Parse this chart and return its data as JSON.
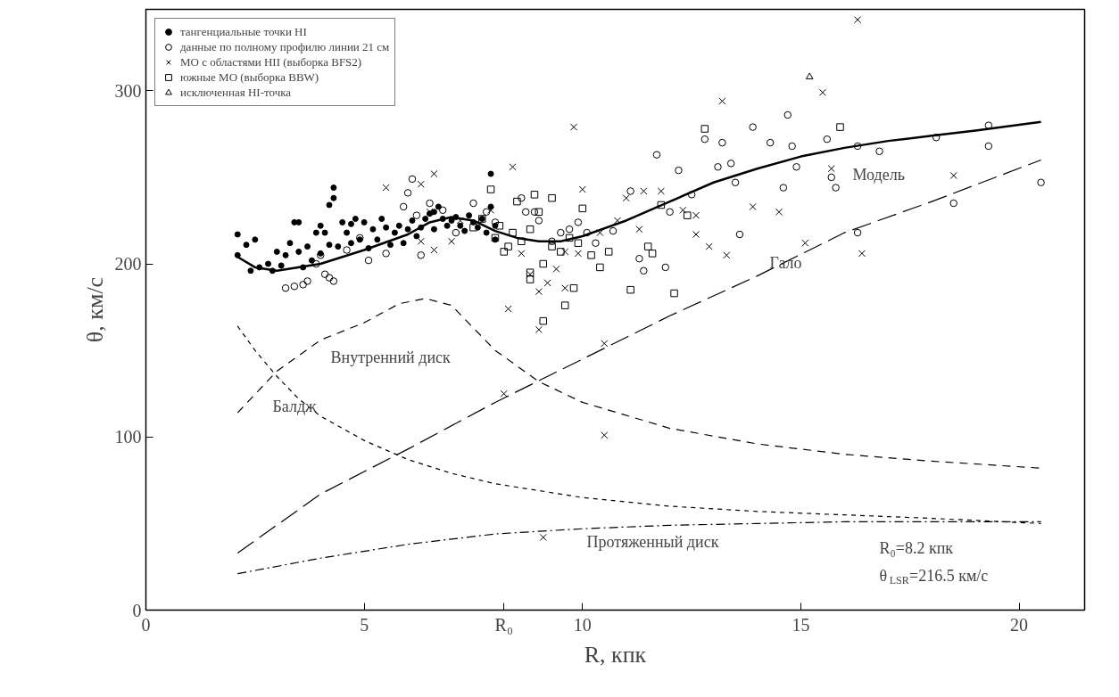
{
  "chart_data": {
    "type": "scatter",
    "xlabel": "R, кпк",
    "ylabel": "θ, км/с",
    "xlim": [
      0,
      21.5
    ],
    "ylim": [
      0,
      347
    ],
    "xticks": [
      0,
      5,
      {
        "value": 8.2,
        "label": "R₀"
      },
      10,
      15,
      20
    ],
    "yticks": [
      0,
      100,
      200,
      300
    ],
    "grid": false,
    "legend": "top left",
    "series": [
      {
        "name": "тангенциальные точки HI",
        "marker": "dot",
        "color": "#000000",
        "x": [
          2.1,
          2.1,
          2.3,
          2.4,
          2.5,
          2.6,
          2.8,
          2.9,
          3.0,
          3.1,
          3.2,
          3.3,
          3.4,
          3.5,
          3.5,
          3.6,
          3.7,
          3.8,
          3.9,
          4.0,
          4.0,
          4.1,
          4.2,
          4.2,
          4.3,
          4.3,
          4.4,
          4.5,
          4.6,
          4.7,
          4.7,
          4.8,
          4.9,
          5.0,
          5.1,
          5.2,
          5.3,
          5.4,
          5.5,
          5.6,
          5.7,
          5.8,
          5.9,
          6.0,
          6.1,
          6.2,
          6.3,
          6.4,
          6.5,
          6.6,
          6.6,
          6.7,
          6.8,
          6.9,
          7.0,
          7.1,
          7.2,
          7.3,
          7.4,
          7.5,
          7.6,
          7.7,
          7.8,
          7.9,
          7.9,
          8.0,
          8.0
        ],
        "values": [
          217,
          205,
          211,
          196,
          214,
          198,
          200,
          196,
          207,
          199,
          205,
          212,
          224,
          207,
          224,
          198,
          210,
          202,
          218,
          206,
          222,
          218,
          211,
          234,
          244,
          238,
          210,
          224,
          218,
          212,
          223,
          226,
          214,
          224,
          209,
          220,
          214,
          226,
          221,
          211,
          218,
          222,
          212,
          220,
          225,
          216,
          221,
          226,
          229,
          230,
          220,
          233,
          226,
          222,
          225,
          227,
          222,
          219,
          228,
          224,
          221,
          226,
          218,
          252,
          233,
          214,
          222
        ]
      },
      {
        "name": "данные по полному профилю линии 21 см",
        "marker": "circle",
        "color": "#000000",
        "x": [
          3.2,
          3.4,
          3.6,
          3.7,
          3.9,
          4.0,
          4.1,
          4.2,
          4.3,
          4.6,
          4.9,
          5.1,
          5.5,
          5.9,
          6.0,
          6.1,
          6.2,
          6.3,
          6.5,
          6.8,
          7.1,
          7.5,
          7.8,
          8.0,
          8.6,
          8.7,
          8.9,
          9.0,
          9.3,
          9.5,
          9.7,
          9.9,
          10.1,
          10.3,
          10.7,
          11.1,
          11.3,
          11.4,
          11.7,
          11.9,
          12.0,
          12.2,
          12.5,
          12.8,
          13.1,
          13.2,
          13.4,
          13.5,
          13.6,
          13.9,
          14.3,
          14.6,
          14.7,
          14.8,
          14.9,
          15.6,
          15.7,
          15.8,
          16.3,
          16.3,
          16.8,
          18.1,
          18.5,
          19.3,
          19.3,
          20.5
        ],
        "values": [
          186,
          187,
          188,
          190,
          200,
          205,
          194,
          192,
          190,
          208,
          215,
          202,
          206,
          233,
          241,
          249,
          228,
          205,
          235,
          231,
          218,
          235,
          230,
          224,
          238,
          230,
          230,
          225,
          213,
          218,
          220,
          224,
          218,
          212,
          219,
          242,
          203,
          196,
          263,
          198,
          230,
          254,
          240,
          272,
          256,
          270,
          258,
          247,
          217,
          279,
          270,
          244,
          286,
          268,
          256,
          272,
          250,
          244,
          268,
          218,
          265,
          273,
          235,
          280,
          268,
          247
        ]
      },
      {
        "name": "МО с областями HII (выборка BFS2)",
        "marker": "cross",
        "color": "#000000",
        "x": [
          5.5,
          6.3,
          6.5,
          6.6,
          7.0,
          6.3,
          6.6,
          7.9,
          8.4,
          8.6,
          8.8,
          9.0,
          9.2,
          9.4,
          9.6,
          9.8,
          10.0,
          10.4,
          10.5,
          10.5,
          8.2,
          9.1,
          8.3,
          9.0,
          9.9,
          11.0,
          11.4,
          11.8,
          12.3,
          12.6,
          12.9,
          13.2,
          13.3,
          13.9,
          14.5,
          15.1,
          15.5,
          15.7,
          16.3,
          16.4,
          18.5,
          10.8,
          11.3,
          12.6,
          9.6,
          7.2
        ],
        "values": [
          244,
          246,
          230,
          252,
          213,
          213,
          208,
          231,
          256,
          206,
          194,
          184,
          189,
          197,
          186,
          279,
          243,
          218,
          154,
          101,
          125,
          42,
          174,
          162,
          206,
          238,
          242,
          242,
          231,
          217,
          210,
          294,
          205,
          233,
          230,
          212,
          299,
          255,
          341,
          206,
          251,
          225,
          220,
          228,
          207,
          225
        ]
      },
      {
        "name": "южные МО (выборка BBW)",
        "marker": "square",
        "color": "#000000",
        "x": [
          7.9,
          8.1,
          8.3,
          8.5,
          8.8,
          8.9,
          9.0,
          9.1,
          9.3,
          9.5,
          9.7,
          9.8,
          9.9,
          8.8,
          8.8,
          10.2,
          10.4,
          10.6,
          11.1,
          11.6,
          12.1,
          12.4,
          12.8,
          15.9,
          9.6,
          9.1,
          7.5,
          7.7,
          8.0,
          8.2,
          8.4,
          8.6,
          9.3,
          10.0,
          11.5,
          11.8
        ],
        "values": [
          243,
          222,
          210,
          236,
          220,
          240,
          230,
          200,
          238,
          207,
          215,
          186,
          212,
          195,
          191,
          205,
          198,
          207,
          185,
          206,
          183,
          228,
          278,
          279,
          176,
          167,
          221,
          226,
          215,
          207,
          218,
          213,
          210,
          232,
          210,
          234
        ]
      },
      {
        "name": "исключенная HI-точка",
        "marker": "triangle",
        "color": "#000000",
        "x": [
          15.2
        ],
        "values": [
          308
        ]
      },
      {
        "type": "line",
        "line_style": "solid",
        "color": "#000000",
        "x": [
          2.1,
          2.5,
          3,
          4,
          5,
          6,
          6.5,
          7,
          7.5,
          8,
          8.5,
          9,
          9.5,
          10,
          11,
          12,
          13,
          14,
          15,
          16,
          17,
          18,
          19,
          20.5
        ],
        "values": [
          204,
          198,
          196,
          200,
          208,
          217,
          224,
          227,
          225,
          219,
          215,
          213,
          213,
          216,
          225,
          236,
          247,
          255,
          262,
          267,
          271,
          274,
          277,
          282
        ]
      },
      {
        "type": "line",
        "line_style": "longdash",
        "color": "#000000",
        "x": [
          2.1,
          4,
          6,
          8,
          10,
          12,
          14,
          16,
          18,
          20.5
        ],
        "values": [
          33,
          67,
          93,
          120,
          145,
          170,
          193,
          218,
          236,
          260
        ]
      },
      {
        "type": "line",
        "line_style": "dashed",
        "color": "#000000",
        "x": [
          2.1,
          3,
          4,
          5,
          5.8,
          6.4,
          7,
          7.5,
          8,
          9,
          10,
          12,
          14,
          16,
          18,
          20.5
        ],
        "values": [
          114,
          138,
          156,
          166,
          177,
          180,
          176,
          163,
          150,
          132,
          120,
          105,
          96,
          90,
          86,
          82
        ]
      },
      {
        "type": "line",
        "line_style": "dotted",
        "color": "#000000",
        "x": [
          2.1,
          2.5,
          3,
          3.5,
          4,
          5,
          6,
          7,
          8,
          10,
          12,
          14,
          16,
          18,
          20.5
        ],
        "values": [
          164,
          150,
          135,
          122,
          112,
          98,
          87,
          79,
          73,
          65,
          60,
          57,
          55,
          53,
          50
        ]
      },
      {
        "type": "line",
        "line_style": "dashdot",
        "color": "#000000",
        "x": [
          2.1,
          4,
          6,
          8,
          10,
          12,
          14,
          16,
          18,
          20.5
        ],
        "values": [
          21,
          30,
          38,
          44,
          47,
          49,
          50,
          51,
          51,
          51
        ]
      }
    ],
    "annotations": [
      "Модель",
      "Гало",
      "Внутренний диск",
      "Балдж",
      "Протяженный диск",
      "R₀=8.2 кпк",
      "θ$_{LSR}$=216.5 км/с"
    ]
  }
}
